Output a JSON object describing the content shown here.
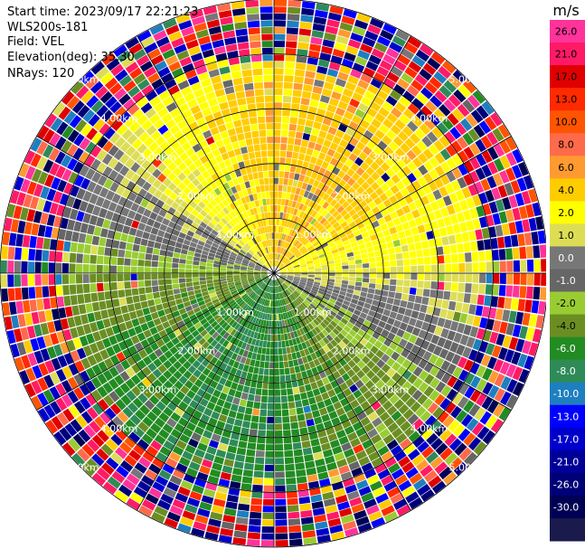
{
  "header": {
    "start_time": "Start time: 2023/09/17 22:21:23",
    "instrument": "WLS200s-181",
    "field": "Field: VEL",
    "elevation": "Elevation(deg): 35.30",
    "nrays": "NRays: 120"
  },
  "chart_data": {
    "type": "heatmap",
    "projection": "polar-ppi",
    "field": "VEL",
    "n_rays": 120,
    "max_range_km": 5.0,
    "rings_km": [
      1.0,
      2.0,
      3.0,
      4.0,
      5.0
    ],
    "ring_labels": [
      "1.00km",
      "2.00km",
      "3.00km",
      "4.00km",
      "5.00km"
    ],
    "spokes_deg": [
      0,
      30,
      60,
      90,
      120,
      150,
      180,
      210,
      240,
      270,
      300,
      330
    ],
    "pattern": {
      "approaching_sector_azimuth_deg": 20,
      "approaching_velocity_ms": 5.5,
      "receding_sector_azimuth_deg": 200,
      "receding_velocity_ms": -6.0,
      "valid_range_km": [
        0.2,
        4.0
      ]
    },
    "colorbar": {
      "unit": "m/s",
      "tick_labels": [
        "26.0",
        "21.0",
        "17.0",
        "13.0",
        "10.0",
        "8.0",
        "6.0",
        "4.0",
        "2.0",
        "1.0",
        "0.0",
        "-1.0",
        "-2.0",
        "-4.0",
        "-6.0",
        "-8.0",
        "-10.0",
        "-13.0",
        "-17.0",
        "-21.0",
        "-26.0",
        "-30.0"
      ],
      "colors": [
        "#ff3399",
        "#ff1a66",
        "#e00000",
        "#ff2a00",
        "#ff5500",
        "#ff6a4a",
        "#ff9a30",
        "#ffcc00",
        "#ffff00",
        "#dddd55",
        "#777777",
        "#666666",
        "#99cc33",
        "#6b8e23",
        "#228b22",
        "#2e8b57",
        "#1e7fc0",
        "#0000ff",
        "#0000cc",
        "#000099",
        "#000077",
        "#000055",
        "#1a1a4d"
      ]
    }
  }
}
